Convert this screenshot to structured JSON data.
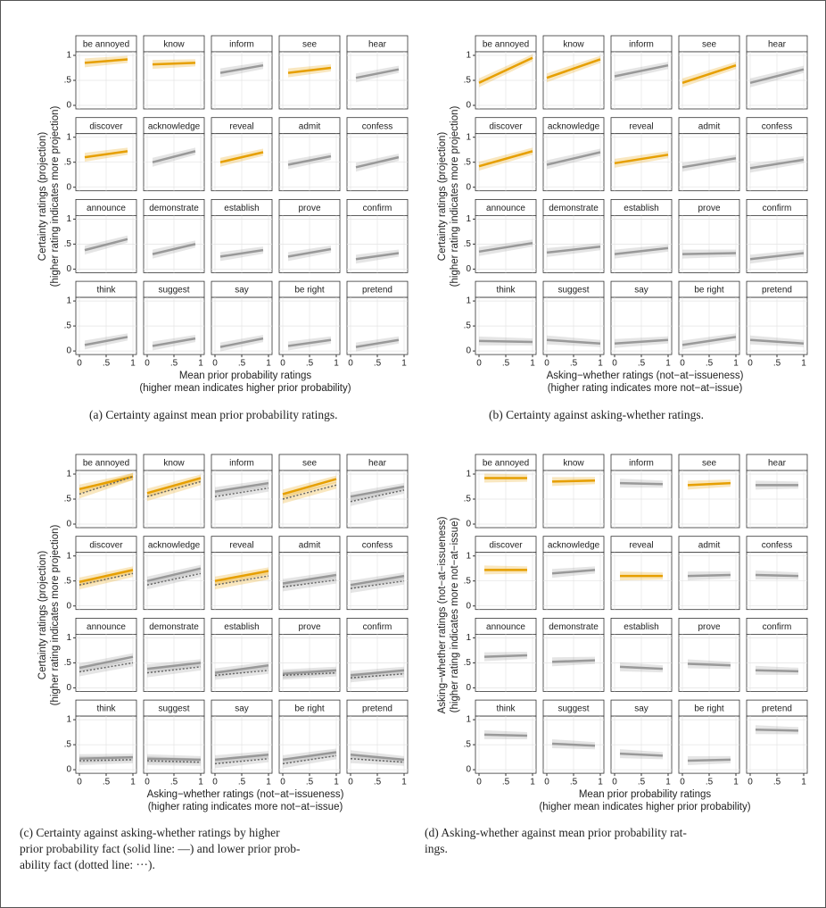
{
  "figures": [
    {
      "caption": [
        "(a) Certainty against mean prior probability ratings."
      ],
      "y_label": [
        "Certainty ratings (projection)",
        "(higher rating indicates more projection)"
      ],
      "x_label": [
        "Mean prior probability ratings",
        "(higher mean indicates higher prior probability)"
      ],
      "xlim": [
        0,
        1
      ],
      "ylim": [
        0,
        1
      ],
      "xticks": [
        0,
        {
          "value": 0.5,
          "label": ".5"
        },
        1
      ],
      "yticks": [
        0,
        {
          "value": 0.5,
          "label": ".5"
        },
        1
      ],
      "fit_x": [
        0.1,
        0.9
      ],
      "colors": {
        "highlight": "#e69f00",
        "other": "#999999"
      },
      "facets": [
        {
          "label": "be annoyed",
          "highlight": true,
          "fit": [
            0.85,
            0.92
          ]
        },
        {
          "label": "know",
          "highlight": true,
          "fit": [
            0.82,
            0.85
          ]
        },
        {
          "label": "inform",
          "highlight": false,
          "fit": [
            0.65,
            0.8
          ]
        },
        {
          "label": "see",
          "highlight": true,
          "fit": [
            0.65,
            0.75
          ]
        },
        {
          "label": "hear",
          "highlight": false,
          "fit": [
            0.55,
            0.72
          ]
        },
        {
          "label": "discover",
          "highlight": true,
          "fit": [
            0.6,
            0.72
          ]
        },
        {
          "label": "acknowledge",
          "highlight": false,
          "fit": [
            0.5,
            0.72
          ]
        },
        {
          "label": "reveal",
          "highlight": true,
          "fit": [
            0.5,
            0.7
          ]
        },
        {
          "label": "admit",
          "highlight": false,
          "fit": [
            0.45,
            0.62
          ]
        },
        {
          "label": "confess",
          "highlight": false,
          "fit": [
            0.4,
            0.6
          ]
        },
        {
          "label": "announce",
          "highlight": false,
          "fit": [
            0.38,
            0.6
          ]
        },
        {
          "label": "demonstrate",
          "highlight": false,
          "fit": [
            0.3,
            0.5
          ]
        },
        {
          "label": "establish",
          "highlight": false,
          "fit": [
            0.25,
            0.38
          ]
        },
        {
          "label": "prove",
          "highlight": false,
          "fit": [
            0.25,
            0.4
          ]
        },
        {
          "label": "confirm",
          "highlight": false,
          "fit": [
            0.2,
            0.32
          ]
        },
        {
          "label": "think",
          "highlight": false,
          "fit": [
            0.12,
            0.28
          ]
        },
        {
          "label": "suggest",
          "highlight": false,
          "fit": [
            0.1,
            0.25
          ]
        },
        {
          "label": "say",
          "highlight": false,
          "fit": [
            0.08,
            0.25
          ]
        },
        {
          "label": "be right",
          "highlight": false,
          "fit": [
            0.1,
            0.22
          ]
        },
        {
          "label": "pretend",
          "highlight": false,
          "fit": [
            0.08,
            0.22
          ]
        }
      ]
    },
    {
      "caption": [
        "(b) Certainty against asking-whether ratings."
      ],
      "y_label": [
        "Certainty ratings (projection)",
        "(higher rating indicates more projection)"
      ],
      "x_label": [
        "Asking−whether ratings (not−at−issueness)",
        "(higher rating indicates more not−at−issue)"
      ],
      "xlim": [
        0,
        1
      ],
      "ylim": [
        0,
        1
      ],
      "xticks": [
        0,
        {
          "value": 0.5,
          "label": ".5"
        },
        1
      ],
      "yticks": [
        0,
        {
          "value": 0.5,
          "label": ".5"
        },
        1
      ],
      "fit_x": [
        0,
        1
      ],
      "colors": {
        "highlight": "#e69f00",
        "other": "#999999"
      },
      "facets": [
        {
          "label": "be annoyed",
          "highlight": true,
          "fit": [
            0.45,
            0.95
          ]
        },
        {
          "label": "know",
          "highlight": true,
          "fit": [
            0.55,
            0.92
          ]
        },
        {
          "label": "inform",
          "highlight": false,
          "fit": [
            0.58,
            0.8
          ]
        },
        {
          "label": "see",
          "highlight": true,
          "fit": [
            0.45,
            0.8
          ]
        },
        {
          "label": "hear",
          "highlight": false,
          "fit": [
            0.45,
            0.72
          ]
        },
        {
          "label": "discover",
          "highlight": true,
          "fit": [
            0.42,
            0.72
          ]
        },
        {
          "label": "acknowledge",
          "highlight": false,
          "fit": [
            0.45,
            0.7
          ]
        },
        {
          "label": "reveal",
          "highlight": true,
          "fit": [
            0.48,
            0.65
          ]
        },
        {
          "label": "admit",
          "highlight": false,
          "fit": [
            0.4,
            0.58
          ]
        },
        {
          "label": "confess",
          "highlight": false,
          "fit": [
            0.38,
            0.55
          ]
        },
        {
          "label": "announce",
          "highlight": false,
          "fit": [
            0.35,
            0.52
          ]
        },
        {
          "label": "demonstrate",
          "highlight": false,
          "fit": [
            0.33,
            0.45
          ]
        },
        {
          "label": "establish",
          "highlight": false,
          "fit": [
            0.3,
            0.42
          ]
        },
        {
          "label": "prove",
          "highlight": false,
          "fit": [
            0.3,
            0.32
          ]
        },
        {
          "label": "confirm",
          "highlight": false,
          "fit": [
            0.2,
            0.32
          ]
        },
        {
          "label": "think",
          "highlight": false,
          "fit": [
            0.2,
            0.18
          ]
        },
        {
          "label": "suggest",
          "highlight": false,
          "fit": [
            0.22,
            0.15
          ]
        },
        {
          "label": "say",
          "highlight": false,
          "fit": [
            0.15,
            0.22
          ]
        },
        {
          "label": "be right",
          "highlight": false,
          "fit": [
            0.12,
            0.28
          ]
        },
        {
          "label": "pretend",
          "highlight": false,
          "fit": [
            0.22,
            0.15
          ]
        }
      ]
    },
    {
      "caption": [
        "(c) Certainty against asking-whether ratings by higher",
        "prior probability fact (solid line: —) and lower prior prob-",
        "ability fact (dotted line: ···)."
      ],
      "y_label": [
        "Certainty ratings (projection)",
        "(higher rating indicates more projection)"
      ],
      "x_label": [
        "Asking−whether ratings (not−at−issueness)",
        "(higher rating indicates more not−at−issue)"
      ],
      "xlim": [
        0,
        1
      ],
      "ylim": [
        0,
        1
      ],
      "xticks": [
        0,
        {
          "value": 0.5,
          "label": ".5"
        },
        1
      ],
      "yticks": [
        0,
        {
          "value": 0.5,
          "label": ".5"
        },
        1
      ],
      "fit_x": [
        0,
        1
      ],
      "colors": {
        "highlight": "#e69f00",
        "other": "#999999"
      },
      "facets": [
        {
          "label": "be annoyed",
          "highlight": true,
          "fit": [
            0.7,
            0.95
          ],
          "fit_dotted": [
            0.6,
            0.95
          ]
        },
        {
          "label": "know",
          "highlight": true,
          "fit": [
            0.62,
            0.92
          ],
          "fit_dotted": [
            0.55,
            0.85
          ]
        },
        {
          "label": "inform",
          "highlight": false,
          "fit": [
            0.65,
            0.82
          ],
          "fit_dotted": [
            0.55,
            0.72
          ]
        },
        {
          "label": "see",
          "highlight": true,
          "fit": [
            0.6,
            0.9
          ],
          "fit_dotted": [
            0.5,
            0.78
          ]
        },
        {
          "label": "hear",
          "highlight": false,
          "fit": [
            0.55,
            0.75
          ],
          "fit_dotted": [
            0.45,
            0.68
          ]
        },
        {
          "label": "discover",
          "highlight": true,
          "fit": [
            0.48,
            0.72
          ],
          "fit_dotted": [
            0.42,
            0.65
          ]
        },
        {
          "label": "acknowledge",
          "highlight": false,
          "fit": [
            0.5,
            0.75
          ],
          "fit_dotted": [
            0.42,
            0.65
          ]
        },
        {
          "label": "reveal",
          "highlight": true,
          "fit": [
            0.5,
            0.7
          ],
          "fit_dotted": [
            0.42,
            0.6
          ]
        },
        {
          "label": "admit",
          "highlight": false,
          "fit": [
            0.45,
            0.62
          ],
          "fit_dotted": [
            0.38,
            0.52
          ]
        },
        {
          "label": "confess",
          "highlight": false,
          "fit": [
            0.42,
            0.6
          ],
          "fit_dotted": [
            0.35,
            0.5
          ]
        },
        {
          "label": "announce",
          "highlight": false,
          "fit": [
            0.4,
            0.62
          ],
          "fit_dotted": [
            0.32,
            0.5
          ]
        },
        {
          "label": "demonstrate",
          "highlight": false,
          "fit": [
            0.38,
            0.5
          ],
          "fit_dotted": [
            0.3,
            0.42
          ]
        },
        {
          "label": "establish",
          "highlight": false,
          "fit": [
            0.3,
            0.45
          ],
          "fit_dotted": [
            0.25,
            0.35
          ]
        },
        {
          "label": "prove",
          "highlight": false,
          "fit": [
            0.28,
            0.35
          ],
          "fit_dotted": [
            0.25,
            0.3
          ]
        },
        {
          "label": "confirm",
          "highlight": false,
          "fit": [
            0.25,
            0.35
          ],
          "fit_dotted": [
            0.2,
            0.28
          ]
        },
        {
          "label": "think",
          "highlight": false,
          "fit": [
            0.22,
            0.25
          ],
          "fit_dotted": [
            0.18,
            0.2
          ]
        },
        {
          "label": "suggest",
          "highlight": false,
          "fit": [
            0.22,
            0.2
          ],
          "fit_dotted": [
            0.18,
            0.15
          ]
        },
        {
          "label": "say",
          "highlight": false,
          "fit": [
            0.2,
            0.3
          ],
          "fit_dotted": [
            0.12,
            0.22
          ]
        },
        {
          "label": "be right",
          "highlight": false,
          "fit": [
            0.2,
            0.35
          ],
          "fit_dotted": [
            0.12,
            0.28
          ]
        },
        {
          "label": "pretend",
          "highlight": false,
          "fit": [
            0.3,
            0.2
          ],
          "fit_dotted": [
            0.22,
            0.15
          ]
        }
      ]
    },
    {
      "caption": [
        "(d) Asking-whether against mean prior probability rat-",
        "ings."
      ],
      "y_label": [
        "Asking−whether ratings (not−at−issueness)",
        "(higher rating indicates more not−at−issue)"
      ],
      "x_label": [
        "Mean prior probability ratings",
        "(higher mean indicates higher prior probability)"
      ],
      "xlim": [
        0,
        1
      ],
      "ylim": [
        0,
        1
      ],
      "xticks": [
        0,
        {
          "value": 0.5,
          "label": ".5"
        },
        1
      ],
      "yticks": [
        0,
        {
          "value": 0.5,
          "label": ".5"
        },
        1
      ],
      "fit_x": [
        0.1,
        0.9
      ],
      "colors": {
        "highlight": "#e69f00",
        "other": "#999999"
      },
      "facets": [
        {
          "label": "be annoyed",
          "highlight": true,
          "fit": [
            0.92,
            0.92
          ]
        },
        {
          "label": "know",
          "highlight": true,
          "fit": [
            0.85,
            0.87
          ]
        },
        {
          "label": "inform",
          "highlight": false,
          "fit": [
            0.82,
            0.8
          ]
        },
        {
          "label": "see",
          "highlight": true,
          "fit": [
            0.78,
            0.82
          ]
        },
        {
          "label": "hear",
          "highlight": false,
          "fit": [
            0.78,
            0.78
          ]
        },
        {
          "label": "discover",
          "highlight": true,
          "fit": [
            0.72,
            0.72
          ]
        },
        {
          "label": "acknowledge",
          "highlight": false,
          "fit": [
            0.65,
            0.72
          ]
        },
        {
          "label": "reveal",
          "highlight": true,
          "fit": [
            0.6,
            0.6
          ]
        },
        {
          "label": "admit",
          "highlight": false,
          "fit": [
            0.6,
            0.62
          ]
        },
        {
          "label": "confess",
          "highlight": false,
          "fit": [
            0.62,
            0.6
          ]
        },
        {
          "label": "announce",
          "highlight": false,
          "fit": [
            0.62,
            0.65
          ]
        },
        {
          "label": "demonstrate",
          "highlight": false,
          "fit": [
            0.52,
            0.55
          ]
        },
        {
          "label": "establish",
          "highlight": false,
          "fit": [
            0.42,
            0.38
          ]
        },
        {
          "label": "prove",
          "highlight": false,
          "fit": [
            0.48,
            0.45
          ]
        },
        {
          "label": "confirm",
          "highlight": false,
          "fit": [
            0.35,
            0.33
          ]
        },
        {
          "label": "think",
          "highlight": false,
          "fit": [
            0.7,
            0.68
          ]
        },
        {
          "label": "suggest",
          "highlight": false,
          "fit": [
            0.52,
            0.48
          ]
        },
        {
          "label": "say",
          "highlight": false,
          "fit": [
            0.32,
            0.28
          ]
        },
        {
          "label": "be right",
          "highlight": false,
          "fit": [
            0.18,
            0.2
          ]
        },
        {
          "label": "pretend",
          "highlight": false,
          "fit": [
            0.8,
            0.78
          ]
        }
      ]
    }
  ]
}
